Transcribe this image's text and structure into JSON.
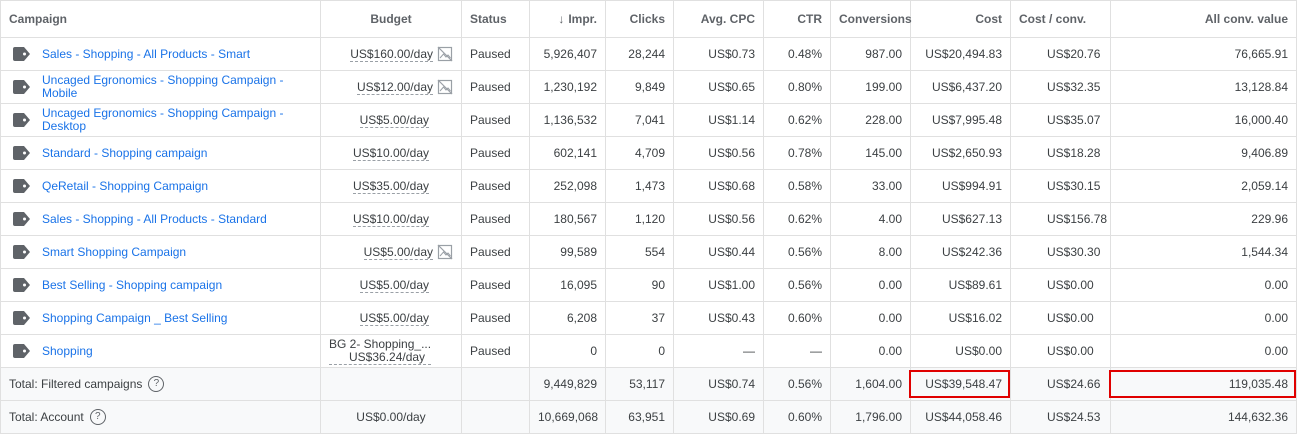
{
  "columns": {
    "campaign": "Campaign",
    "budget": "Budget",
    "status": "Status",
    "impr": "Impr.",
    "clicks": "Clicks",
    "avg_cpc": "Avg. CPC",
    "ctr": "CTR",
    "conversions": "Conversions",
    "cost": "Cost",
    "cost_conv": "Cost / conv.",
    "all_conv_value": "All conv. value"
  },
  "sort_icon": "arrow-down-icon",
  "rows": [
    {
      "campaign": "Sales - Shopping - All Products - Smart",
      "budget": "US$160.00/day",
      "status": "Paused",
      "impr": "5,926,407",
      "clicks": "28,244",
      "avg_cpc": "US$0.73",
      "ctr": "0.48%",
      "conversions": "987.00",
      "cost": "US$20,494.83",
      "cost_conv": "US$20.76",
      "all_conv_value": "76,665.91"
    },
    {
      "campaign": "Uncaged Egronomics - Shopping Campaign - Mobile",
      "budget": "US$12.00/day",
      "status": "Paused",
      "impr": "1,230,192",
      "clicks": "9,849",
      "avg_cpc": "US$0.65",
      "ctr": "0.80%",
      "conversions": "199.00",
      "cost": "US$6,437.20",
      "cost_conv": "US$32.35",
      "all_conv_value": "13,128.84"
    },
    {
      "campaign": "Uncaged Egronomics - Shopping Campaign - Desktop",
      "budget": "US$5.00/day",
      "status": "Paused",
      "impr": "1,136,532",
      "clicks": "7,041",
      "avg_cpc": "US$1.14",
      "ctr": "0.62%",
      "conversions": "228.00",
      "cost": "US$7,995.48",
      "cost_conv": "US$35.07",
      "all_conv_value": "16,000.40"
    },
    {
      "campaign": "Standard - Shopping campaign",
      "budget": "US$10.00/day",
      "status": "Paused",
      "impr": "602,141",
      "clicks": "4,709",
      "avg_cpc": "US$0.56",
      "ctr": "0.78%",
      "conversions": "145.00",
      "cost": "US$2,650.93",
      "cost_conv": "US$18.28",
      "all_conv_value": "9,406.89"
    },
    {
      "campaign": "QeRetail - Shopping Campaign",
      "budget": "US$35.00/day",
      "status": "Paused",
      "impr": "252,098",
      "clicks": "1,473",
      "avg_cpc": "US$0.68",
      "ctr": "0.58%",
      "conversions": "33.00",
      "cost": "US$994.91",
      "cost_conv": "US$30.15",
      "all_conv_value": "2,059.14"
    },
    {
      "campaign": "Sales - Shopping - All Products - Standard",
      "budget": "US$10.00/day",
      "status": "Paused",
      "impr": "180,567",
      "clicks": "1,120",
      "avg_cpc": "US$0.56",
      "ctr": "0.62%",
      "conversions": "4.00",
      "cost": "US$627.13",
      "cost_conv": "US$156.78",
      "all_conv_value": "229.96"
    },
    {
      "campaign": "Smart Shopping Campaign",
      "budget": "US$5.00/day",
      "status": "Paused",
      "impr": "99,589",
      "clicks": "554",
      "avg_cpc": "US$0.44",
      "ctr": "0.56%",
      "conversions": "8.00",
      "cost": "US$242.36",
      "cost_conv": "US$30.30",
      "all_conv_value": "1,544.34"
    },
    {
      "campaign": "Best Selling - Shopping campaign",
      "budget": "US$5.00/day",
      "status": "Paused",
      "impr": "16,095",
      "clicks": "90",
      "avg_cpc": "US$1.00",
      "ctr": "0.56%",
      "conversions": "0.00",
      "cost": "US$89.61",
      "cost_conv": "US$0.00",
      "all_conv_value": "0.00"
    },
    {
      "campaign": "Shopping Campaign _ Best Selling",
      "budget": "US$5.00/day",
      "status": "Paused",
      "impr": "6,208",
      "clicks": "37",
      "avg_cpc": "US$0.43",
      "ctr": "0.60%",
      "conversions": "0.00",
      "cost": "US$16.02",
      "cost_conv": "US$0.00",
      "all_conv_value": "0.00"
    },
    {
      "campaign": "Shopping",
      "budget_line1": "BG 2- Shopping_...",
      "budget_line2": "US$36.24/day",
      "status": "Paused",
      "impr": "0",
      "clicks": "0",
      "avg_cpc": "—",
      "ctr": "—",
      "conversions": "0.00",
      "cost": "US$0.00",
      "cost_conv": "US$0.00",
      "all_conv_value": "0.00"
    }
  ],
  "totals": {
    "filtered": {
      "label": "Total: Filtered campaigns",
      "budget": "",
      "impr": "9,449,829",
      "clicks": "53,117",
      "avg_cpc": "US$0.74",
      "ctr": "0.56%",
      "conversions": "1,604.00",
      "cost": "US$39,548.47",
      "cost_conv": "US$24.66",
      "all_conv_value": "119,035.48"
    },
    "account": {
      "label": "Total: Account",
      "budget": "US$0.00/day",
      "impr": "10,669,068",
      "clicks": "63,951",
      "avg_cpc": "US$0.69",
      "ctr": "0.60%",
      "conversions": "1,796.00",
      "cost": "US$44,058.46",
      "cost_conv": "US$24.53",
      "all_conv_value": "144,632.36"
    }
  },
  "icons": {
    "campaign_type": "shopping-tag-icon",
    "no_image": "no-image-icon",
    "help": "help-circle-icon"
  },
  "help_glyph": "?",
  "highlight_color": "#e00000",
  "link_color": "#1a73e8"
}
